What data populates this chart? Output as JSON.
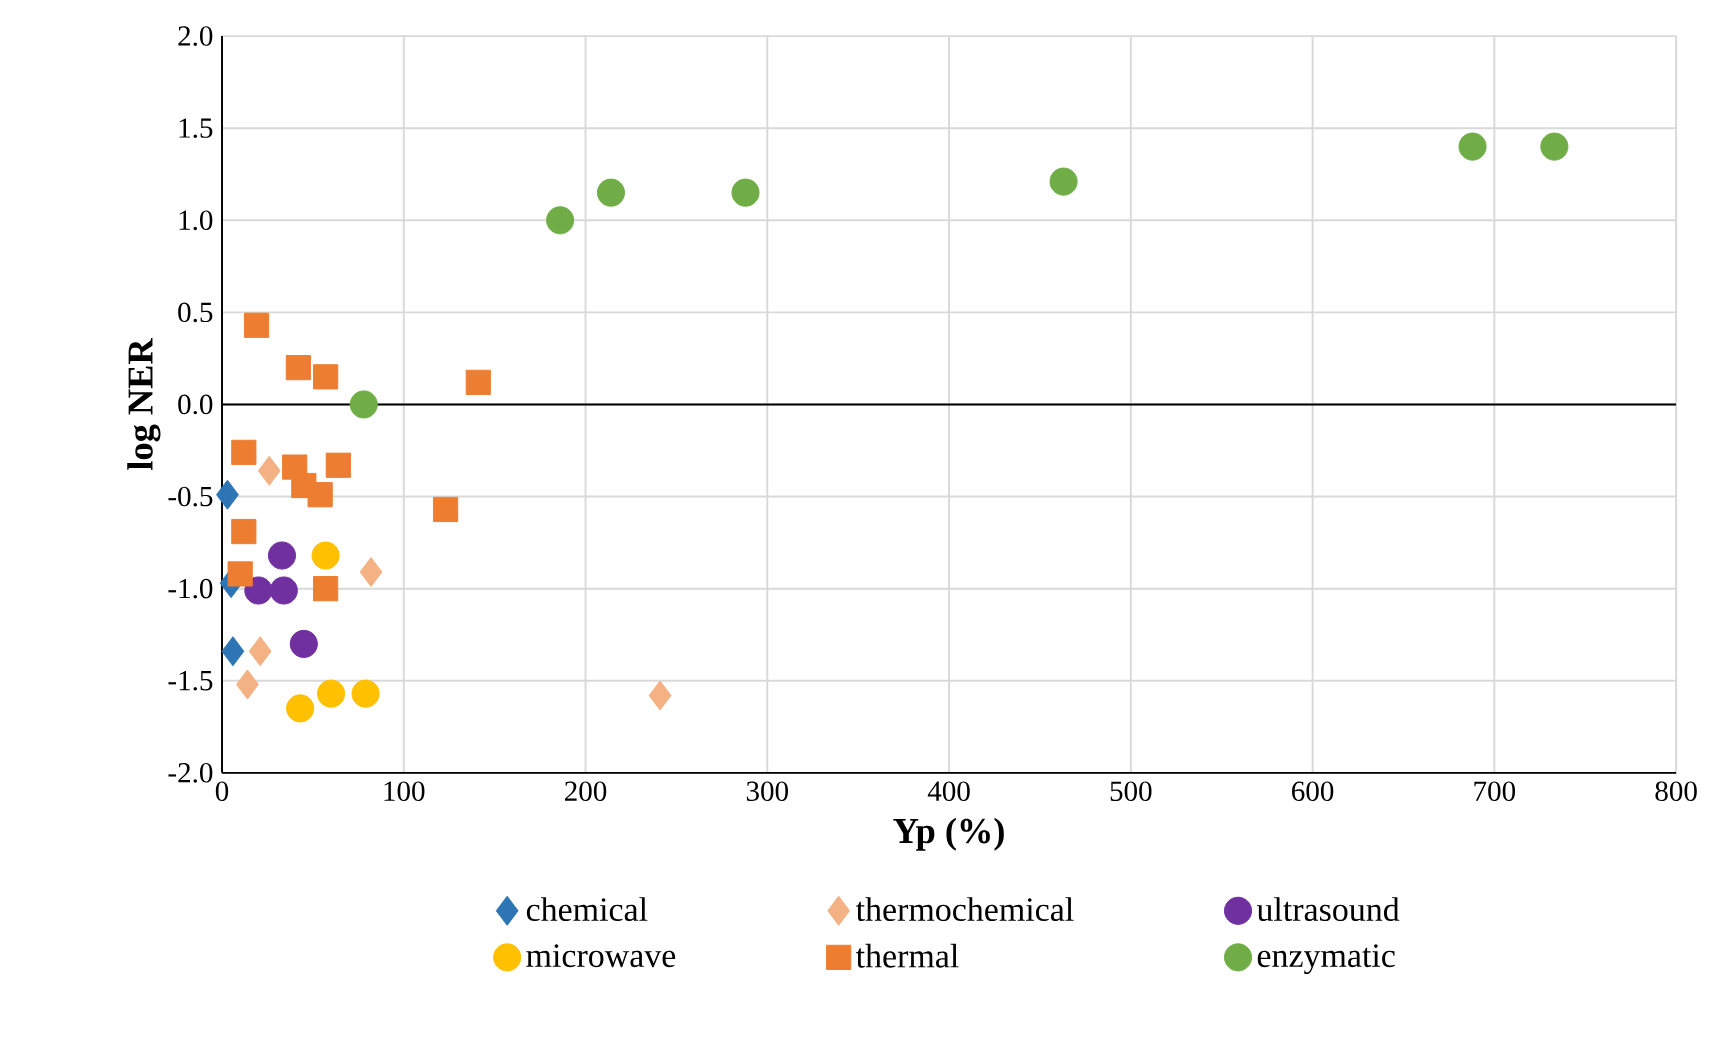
{
  "chart_data": {
    "type": "scatter",
    "xlabel": "Yp (%)",
    "ylabel": "log NER",
    "xlim": [
      0,
      800
    ],
    "ylim": [
      -2,
      2
    ],
    "xticks": [
      0,
      100,
      200,
      300,
      400,
      500,
      600,
      700,
      800
    ],
    "yticks": [
      {
        "value": -2,
        "label": "-2.0"
      },
      {
        "value": -1.5,
        "label": "-1.5"
      },
      {
        "value": -1,
        "label": "-1.0"
      },
      {
        "value": -0.5,
        "label": "-0.5"
      },
      {
        "value": 0,
        "label": "0.0"
      },
      {
        "value": 0.5,
        "label": "0.5"
      },
      {
        "value": 1,
        "label": "1.0"
      },
      {
        "value": 1.5,
        "label": "1.5"
      },
      {
        "value": 2,
        "label": "2.0"
      }
    ],
    "grid": true,
    "legend": "bottom",
    "series": [
      {
        "name": "chemical",
        "color": "#2e75b6",
        "marker": "diamond",
        "x": [
          3,
          5,
          6
        ],
        "values": [
          -0.49,
          -0.97,
          -1.34
        ]
      },
      {
        "name": "thermochemical",
        "color": "#f4b183",
        "marker": "diamond",
        "x": [
          26,
          82,
          21,
          14,
          241
        ],
        "values": [
          -0.36,
          -0.91,
          -1.34,
          -1.52,
          -1.58
        ]
      },
      {
        "name": "ultrasound",
        "color": "#7030a0",
        "marker": "circle",
        "x": [
          33,
          20,
          34,
          45
        ],
        "values": [
          -0.82,
          -1.01,
          -1.01,
          -1.3
        ]
      },
      {
        "name": "microwave",
        "color": "#ffc000",
        "marker": "circle",
        "x": [
          57,
          43,
          60,
          79
        ],
        "values": [
          -0.82,
          -1.65,
          -1.57,
          -1.57
        ]
      },
      {
        "name": "thermal",
        "color": "#ed7d31",
        "marker": "square",
        "x": [
          19,
          42,
          57,
          141,
          12,
          40,
          64,
          45,
          54,
          123,
          12,
          10,
          57
        ],
        "values": [
          0.43,
          0.2,
          0.15,
          0.12,
          -0.26,
          -0.34,
          -0.33,
          -0.44,
          -0.49,
          -0.57,
          -0.69,
          -0.92,
          -1.0
        ]
      },
      {
        "name": "enzymatic",
        "color": "#70ad47",
        "marker": "circle",
        "x": [
          78,
          186,
          214,
          288,
          463,
          688,
          733
        ],
        "values": [
          0,
          1.0,
          1.15,
          1.15,
          1.21,
          1.4,
          1.4
        ]
      }
    ]
  }
}
